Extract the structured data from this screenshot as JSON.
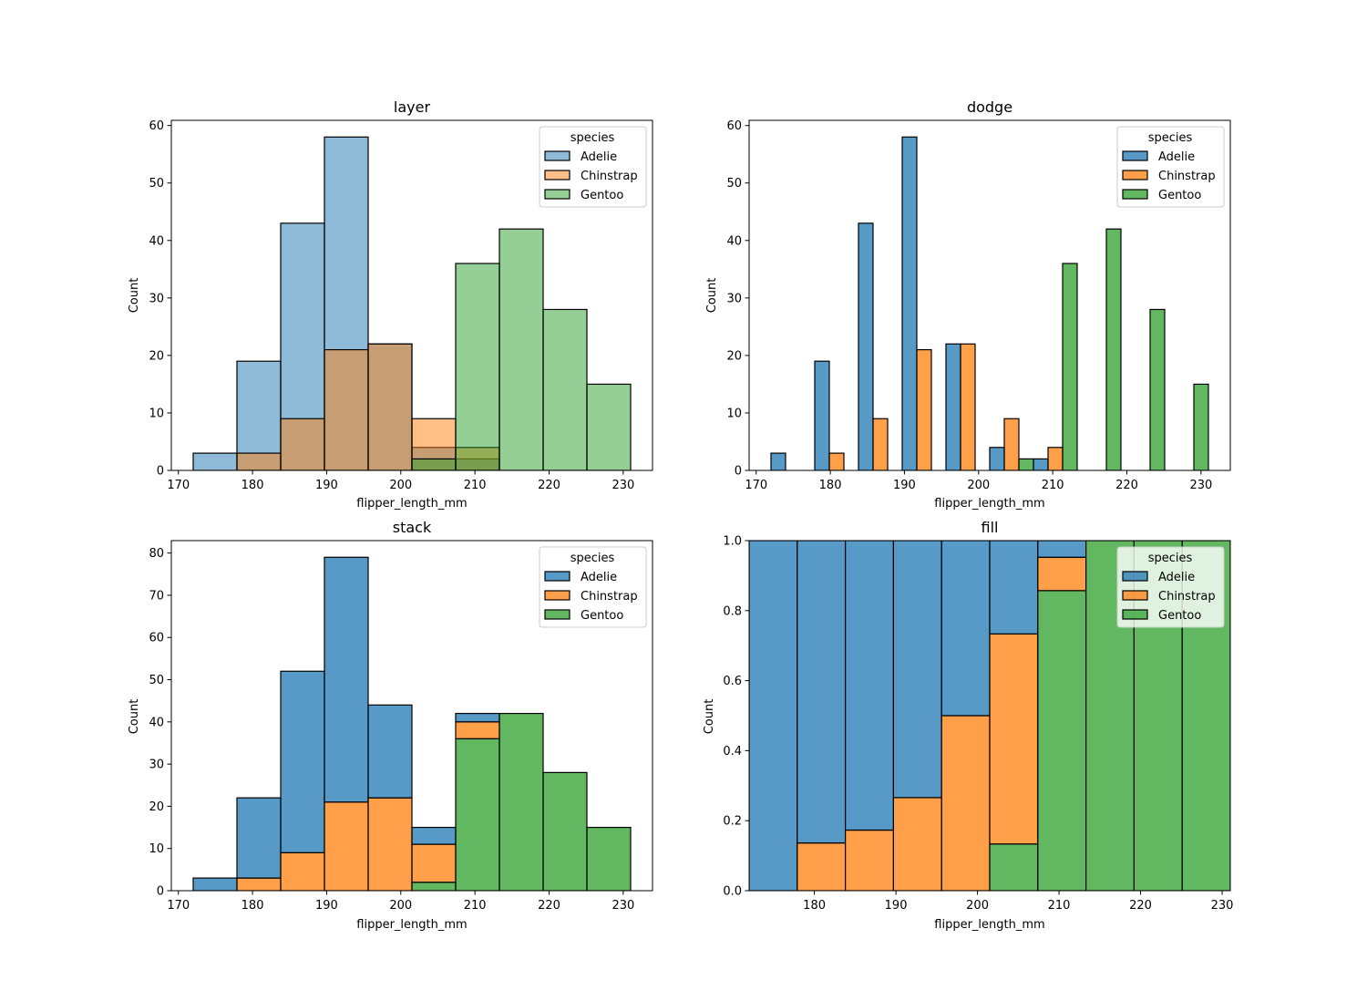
{
  "figure": {
    "bin_edges": [
      172.0,
      177.9,
      183.8,
      189.7,
      195.6,
      201.5,
      207.4,
      213.3,
      219.2,
      225.1,
      231.0
    ]
  },
  "chart_data": [
    {
      "type": "bar",
      "mode": "layer",
      "title": "layer",
      "xlabel": "flipper_length_mm",
      "ylabel": "Count",
      "xlim": [
        169.05,
        233.95
      ],
      "ylim": [
        0,
        60.9
      ],
      "xticks": [
        170,
        180,
        190,
        200,
        210,
        220,
        230
      ],
      "yticks": [
        0,
        10,
        20,
        30,
        40,
        50,
        60
      ],
      "grid": false,
      "legend": {
        "title": "species",
        "placement": "top-right",
        "entries": [
          "Adelie",
          "Chinstrap",
          "Gentoo"
        ]
      },
      "series": [
        {
          "name": "Adelie",
          "color": "#1f77b4",
          "alpha": 0.5,
          "values": [
            3,
            19,
            43,
            58,
            22,
            4,
            2,
            0,
            0,
            0
          ]
        },
        {
          "name": "Chinstrap",
          "color": "#ff7f0e",
          "alpha": 0.5,
          "values": [
            0,
            3,
            9,
            21,
            22,
            9,
            4,
            0,
            0,
            0
          ]
        },
        {
          "name": "Gentoo",
          "color": "#2ca02c",
          "alpha": 0.5,
          "values": [
            0,
            0,
            0,
            0,
            0,
            2,
            36,
            42,
            28,
            15
          ]
        }
      ]
    },
    {
      "type": "bar",
      "mode": "dodge",
      "title": "dodge",
      "xlabel": "flipper_length_mm",
      "ylabel": "Count",
      "xlim": [
        169.05,
        233.95
      ],
      "ylim": [
        0,
        60.9
      ],
      "xticks": [
        170,
        180,
        190,
        200,
        210,
        220,
        230
      ],
      "yticks": [
        0,
        10,
        20,
        30,
        40,
        50,
        60
      ],
      "grid": false,
      "legend": {
        "title": "species",
        "placement": "top-right",
        "entries": [
          "Adelie",
          "Chinstrap",
          "Gentoo"
        ]
      },
      "series": [
        {
          "name": "Adelie",
          "color": "#1f77b4",
          "alpha": 0.75,
          "values": [
            3,
            19,
            43,
            58,
            22,
            4,
            2,
            0,
            0,
            0
          ]
        },
        {
          "name": "Chinstrap",
          "color": "#ff7f0e",
          "alpha": 0.75,
          "values": [
            0,
            3,
            9,
            21,
            22,
            9,
            4,
            0,
            0,
            0
          ]
        },
        {
          "name": "Gentoo",
          "color": "#2ca02c",
          "alpha": 0.75,
          "values": [
            0,
            0,
            0,
            0,
            0,
            2,
            36,
            42,
            28,
            15
          ]
        }
      ]
    },
    {
      "type": "bar",
      "mode": "stack",
      "title": "stack",
      "xlabel": "flipper_length_mm",
      "ylabel": "Count",
      "xlim": [
        169.05,
        233.95
      ],
      "ylim": [
        0,
        82.95
      ],
      "xticks": [
        170,
        180,
        190,
        200,
        210,
        220,
        230
      ],
      "yticks": [
        0,
        10,
        20,
        30,
        40,
        50,
        60,
        70,
        80
      ],
      "grid": false,
      "legend": {
        "title": "species",
        "placement": "top-right",
        "entries": [
          "Adelie",
          "Chinstrap",
          "Gentoo"
        ]
      },
      "series": [
        {
          "name": "Adelie",
          "color": "#1f77b4",
          "alpha": 0.75,
          "values": [
            3,
            19,
            43,
            58,
            22,
            4,
            2,
            0,
            0,
            0
          ]
        },
        {
          "name": "Chinstrap",
          "color": "#ff7f0e",
          "alpha": 0.75,
          "values": [
            0,
            3,
            9,
            21,
            22,
            9,
            4,
            0,
            0,
            0
          ]
        },
        {
          "name": "Gentoo",
          "color": "#2ca02c",
          "alpha": 0.75,
          "values": [
            0,
            0,
            0,
            0,
            0,
            2,
            36,
            42,
            28,
            15
          ]
        }
      ]
    },
    {
      "type": "bar",
      "mode": "fill",
      "title": "fill",
      "xlabel": "flipper_length_mm",
      "ylabel": "Count",
      "xlim": [
        172.0,
        231.0
      ],
      "ylim": [
        0,
        1.0
      ],
      "xticks": [
        180,
        190,
        200,
        210,
        220,
        230
      ],
      "yticks": [
        0.0,
        0.2,
        0.4,
        0.6,
        0.8,
        1.0
      ],
      "ytick_labels": [
        "0.0",
        "0.2",
        "0.4",
        "0.6",
        "0.8",
        "1.0"
      ],
      "grid": false,
      "legend": {
        "title": "species",
        "placement": "top-right",
        "entries": [
          "Adelie",
          "Chinstrap",
          "Gentoo"
        ]
      },
      "series": [
        {
          "name": "Adelie",
          "color": "#1f77b4",
          "alpha": 0.75,
          "values": [
            3,
            19,
            43,
            58,
            22,
            4,
            2,
            0,
            0,
            0
          ]
        },
        {
          "name": "Chinstrap",
          "color": "#ff7f0e",
          "alpha": 0.75,
          "values": [
            0,
            3,
            9,
            21,
            22,
            9,
            4,
            0,
            0,
            0
          ]
        },
        {
          "name": "Gentoo",
          "color": "#2ca02c",
          "alpha": 0.75,
          "values": [
            0,
            0,
            0,
            0,
            0,
            2,
            36,
            42,
            28,
            15
          ]
        }
      ]
    }
  ]
}
